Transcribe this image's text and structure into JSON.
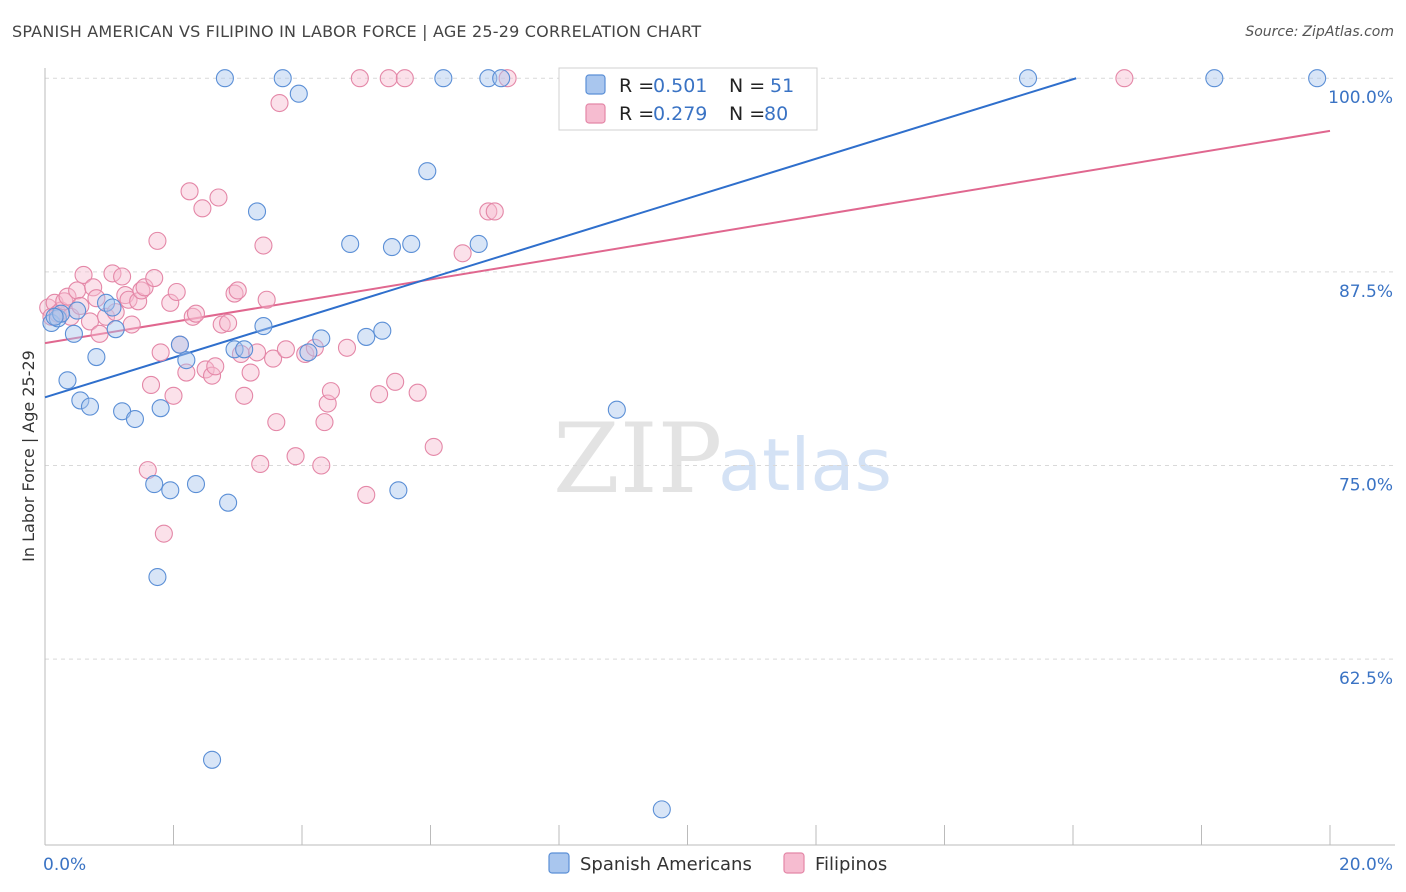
{
  "header": {
    "title": "SPANISH AMERICAN VS FILIPINO IN LABOR FORCE | AGE 25-29 CORRELATION CHART",
    "source_label": "Source:",
    "source_value": "ZipAtlas.com"
  },
  "watermark": {
    "zip": "ZIP",
    "atlas": "atlas"
  },
  "colors": {
    "blue_fill": "#a9c6ee",
    "blue_stroke": "#5b8fd6",
    "blue_line": "#2f6fcc",
    "pink_fill": "#f6bcd0",
    "pink_stroke": "#e487a7",
    "pink_line": "#e0678f",
    "tick_text": "#3a73c4",
    "grid": "#d9d9d9"
  },
  "chart_data": {
    "type": "scatter",
    "title": "SPANISH AMERICAN VS FILIPINO IN LABOR FORCE | AGE 25-29 CORRELATION CHART",
    "xlabel": "",
    "ylabel": "In Labor Force | Age 25-29",
    "xlim": [
      0,
      20
    ],
    "ylim": [
      50.5,
      101.5
    ],
    "x_tick_labels": [
      "0.0%",
      "20.0%"
    ],
    "y_ticks": [
      62.5,
      75.0,
      87.5,
      100.0
    ],
    "y_tick_labels": [
      "62.5%",
      "75.0%",
      "87.5%",
      "100.0%"
    ],
    "grid": true,
    "legend": {
      "position": "top-center",
      "entries": [
        {
          "r_label": "R =",
          "r_value": "0.501",
          "n_label": "N =",
          "n_value": "51"
        },
        {
          "r_label": "R =",
          "r_value": "0.279",
          "n_label": "N =",
          "n_value": "80"
        }
      ]
    },
    "series": [
      {
        "name": "Spanish Americans",
        "color": "#5b8fd6",
        "trend": {
          "x": [
            0.0,
            16.05
          ],
          "y": [
            79.4,
            100.0
          ]
        },
        "points": [
          [
            0.1,
            84.2
          ],
          [
            0.2,
            84.5
          ],
          [
            0.35,
            80.5
          ],
          [
            0.45,
            83.5
          ],
          [
            0.5,
            85.0
          ],
          [
            0.55,
            79.2
          ],
          [
            0.7,
            78.8
          ],
          [
            0.8,
            82.0
          ],
          [
            0.95,
            85.5
          ],
          [
            1.1,
            83.8
          ],
          [
            1.2,
            78.5
          ],
          [
            1.4,
            78.0
          ],
          [
            1.7,
            73.8
          ],
          [
            1.75,
            67.8
          ],
          [
            1.8,
            78.7
          ],
          [
            1.95,
            73.4
          ],
          [
            2.1,
            82.8
          ],
          [
            2.2,
            81.8
          ],
          [
            2.35,
            73.8
          ],
          [
            2.6,
            56.0
          ],
          [
            2.8,
            100.0
          ],
          [
            2.85,
            72.6
          ],
          [
            2.95,
            82.5
          ],
          [
            3.1,
            82.5
          ],
          [
            3.3,
            91.4
          ],
          [
            3.4,
            84.0
          ],
          [
            3.7,
            100.0
          ],
          [
            3.95,
            99.0
          ],
          [
            4.1,
            82.3
          ],
          [
            4.3,
            83.2
          ],
          [
            4.75,
            89.3
          ],
          [
            5.0,
            83.3
          ],
          [
            5.25,
            83.7
          ],
          [
            5.4,
            89.1
          ],
          [
            5.5,
            73.4
          ],
          [
            5.7,
            89.3
          ],
          [
            5.95,
            94.0
          ],
          [
            6.2,
            100.0
          ],
          [
            6.75,
            89.3
          ],
          [
            6.9,
            100.0
          ],
          [
            7.1,
            100.0
          ],
          [
            8.9,
            78.6
          ],
          [
            9.6,
            52.8
          ],
          [
            10.1,
            100.0
          ],
          [
            11.2,
            100.0
          ],
          [
            15.3,
            100.0
          ],
          [
            18.2,
            100.0
          ],
          [
            19.8,
            100.0
          ],
          [
            1.05,
            85.2
          ],
          [
            0.25,
            84.8
          ],
          [
            0.15,
            84.6
          ]
        ]
      },
      {
        "name": "Filipinos",
        "color": "#e487a7",
        "trend": {
          "x": [
            0.0,
            20.0
          ],
          "y": [
            82.9,
            96.6
          ]
        },
        "points": [
          [
            0.05,
            85.2
          ],
          [
            0.1,
            84.6
          ],
          [
            0.15,
            85.5
          ],
          [
            0.2,
            84.8
          ],
          [
            0.25,
            85.0
          ],
          [
            0.3,
            85.6
          ],
          [
            0.35,
            85.9
          ],
          [
            0.4,
            84.6
          ],
          [
            0.5,
            86.3
          ],
          [
            0.55,
            85.3
          ],
          [
            0.6,
            87.3
          ],
          [
            0.7,
            84.3
          ],
          [
            0.75,
            86.5
          ],
          [
            0.8,
            85.8
          ],
          [
            0.85,
            83.5
          ],
          [
            0.95,
            84.6
          ],
          [
            1.05,
            87.4
          ],
          [
            1.1,
            84.9
          ],
          [
            1.2,
            87.2
          ],
          [
            1.25,
            86.0
          ],
          [
            1.3,
            85.7
          ],
          [
            1.35,
            84.1
          ],
          [
            1.45,
            85.6
          ],
          [
            1.5,
            86.3
          ],
          [
            1.55,
            86.5
          ],
          [
            1.6,
            74.7
          ],
          [
            1.65,
            80.2
          ],
          [
            1.7,
            87.1
          ],
          [
            1.75,
            89.5
          ],
          [
            1.8,
            82.3
          ],
          [
            1.85,
            70.6
          ],
          [
            1.95,
            85.5
          ],
          [
            2.0,
            79.5
          ],
          [
            2.05,
            86.2
          ],
          [
            2.1,
            82.8
          ],
          [
            2.2,
            81.0
          ],
          [
            2.25,
            92.7
          ],
          [
            2.3,
            84.6
          ],
          [
            2.35,
            84.8
          ],
          [
            2.45,
            91.6
          ],
          [
            2.5,
            81.2
          ],
          [
            2.6,
            80.8
          ],
          [
            2.65,
            81.4
          ],
          [
            2.7,
            92.3
          ],
          [
            2.75,
            84.1
          ],
          [
            2.85,
            84.2
          ],
          [
            2.95,
            86.1
          ],
          [
            3.0,
            86.3
          ],
          [
            3.05,
            82.2
          ],
          [
            3.1,
            79.5
          ],
          [
            3.2,
            81.0
          ],
          [
            3.3,
            82.3
          ],
          [
            3.35,
            75.1
          ],
          [
            3.4,
            89.2
          ],
          [
            3.45,
            85.7
          ],
          [
            3.55,
            81.9
          ],
          [
            3.6,
            77.8
          ],
          [
            3.65,
            98.4
          ],
          [
            3.75,
            82.5
          ],
          [
            3.9,
            75.6
          ],
          [
            4.05,
            82.2
          ],
          [
            4.2,
            82.6
          ],
          [
            4.3,
            75.0
          ],
          [
            4.35,
            77.8
          ],
          [
            4.4,
            79.0
          ],
          [
            4.45,
            79.8
          ],
          [
            4.7,
            82.6
          ],
          [
            4.9,
            100.0
          ],
          [
            5.0,
            73.1
          ],
          [
            5.2,
            79.6
          ],
          [
            5.35,
            100.0
          ],
          [
            5.45,
            80.4
          ],
          [
            5.6,
            100.0
          ],
          [
            5.8,
            79.7
          ],
          [
            6.05,
            76.2
          ],
          [
            6.5,
            88.7
          ],
          [
            6.9,
            91.4
          ],
          [
            7.0,
            91.4
          ],
          [
            7.2,
            100.0
          ],
          [
            16.8,
            100.0
          ]
        ]
      }
    ]
  },
  "bottom_legend": {
    "items": [
      {
        "label": "Spanish Americans"
      },
      {
        "label": "Filipinos"
      }
    ]
  }
}
